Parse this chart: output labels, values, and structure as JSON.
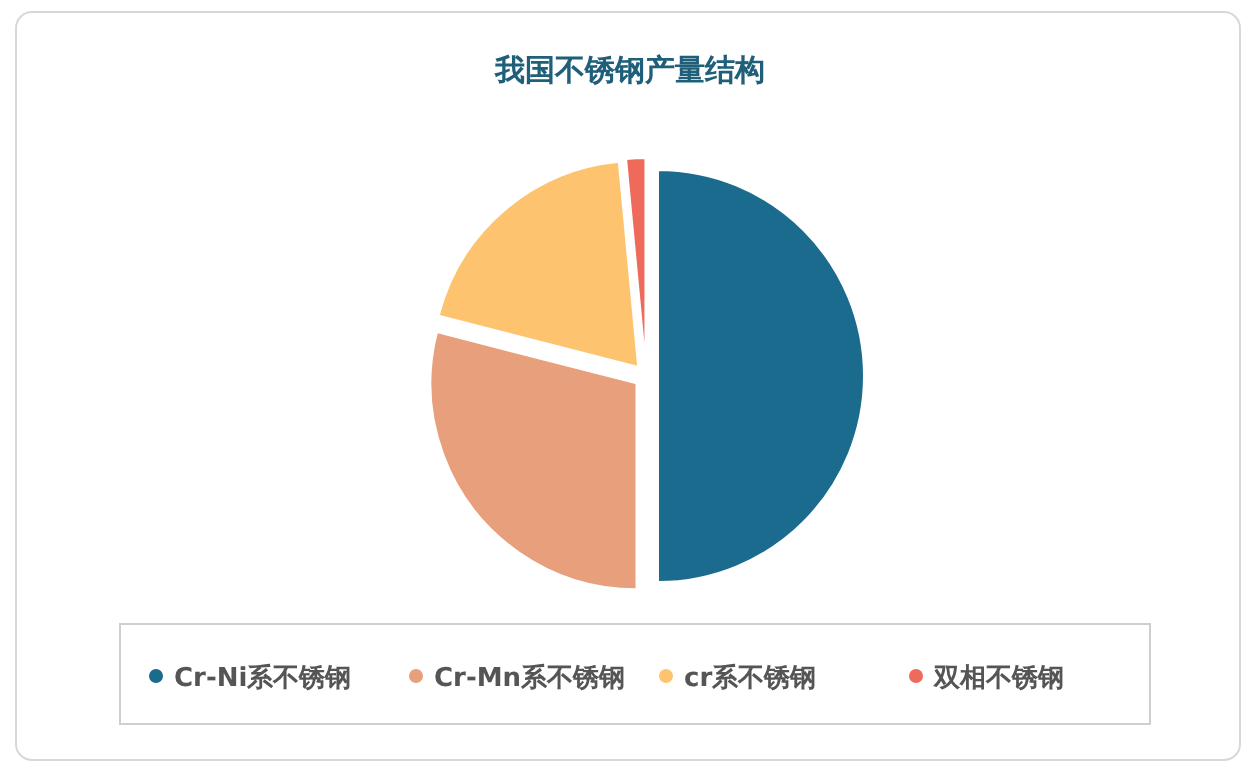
{
  "chart_data": {
    "type": "pie",
    "title": "我国不锈钢产量结构",
    "categories": [
      "Cr-Ni系不锈钢",
      "Cr-Mn系不锈钢",
      "cr系不锈钢",
      "双相不锈钢"
    ],
    "values": [
      50,
      29,
      19.5,
      1.5
    ],
    "colors": [
      "#1b6b8f",
      "#e89f7c",
      "#fec36f",
      "#ee6b5c"
    ],
    "legend": "bottom"
  }
}
